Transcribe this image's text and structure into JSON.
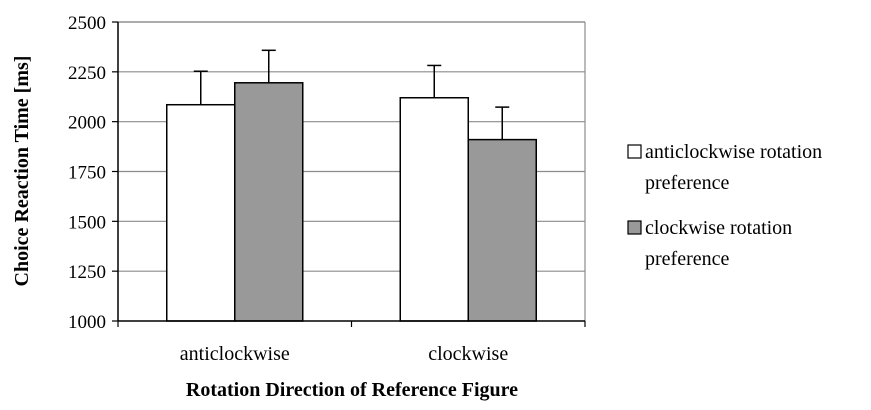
{
  "chart_data": {
    "type": "bar",
    "title": "",
    "xlabel": "Rotation Direction of Reference Figure",
    "ylabel": "Choice Reaction Time [ms]",
    "ylim": [
      1000,
      2500
    ],
    "yticks": [
      1000,
      1250,
      1500,
      1750,
      2000,
      2250,
      2500
    ],
    "grid": true,
    "legend_position": "right",
    "categories": [
      "anticlockwise",
      "clockwise"
    ],
    "series": [
      {
        "name": "anticlockwise rotation preference",
        "name_lines": [
          "anticlockwise rotation",
          "preference"
        ],
        "values": [
          2085,
          2120
        ],
        "errors": [
          168,
          162
        ],
        "color": "#ffffff"
      },
      {
        "name": "clockwise rotation preference",
        "name_lines": [
          "clockwise rotation",
          "preference"
        ],
        "values": [
          2195,
          1910
        ],
        "errors": [
          163,
          163
        ],
        "color": "#999999"
      }
    ]
  }
}
